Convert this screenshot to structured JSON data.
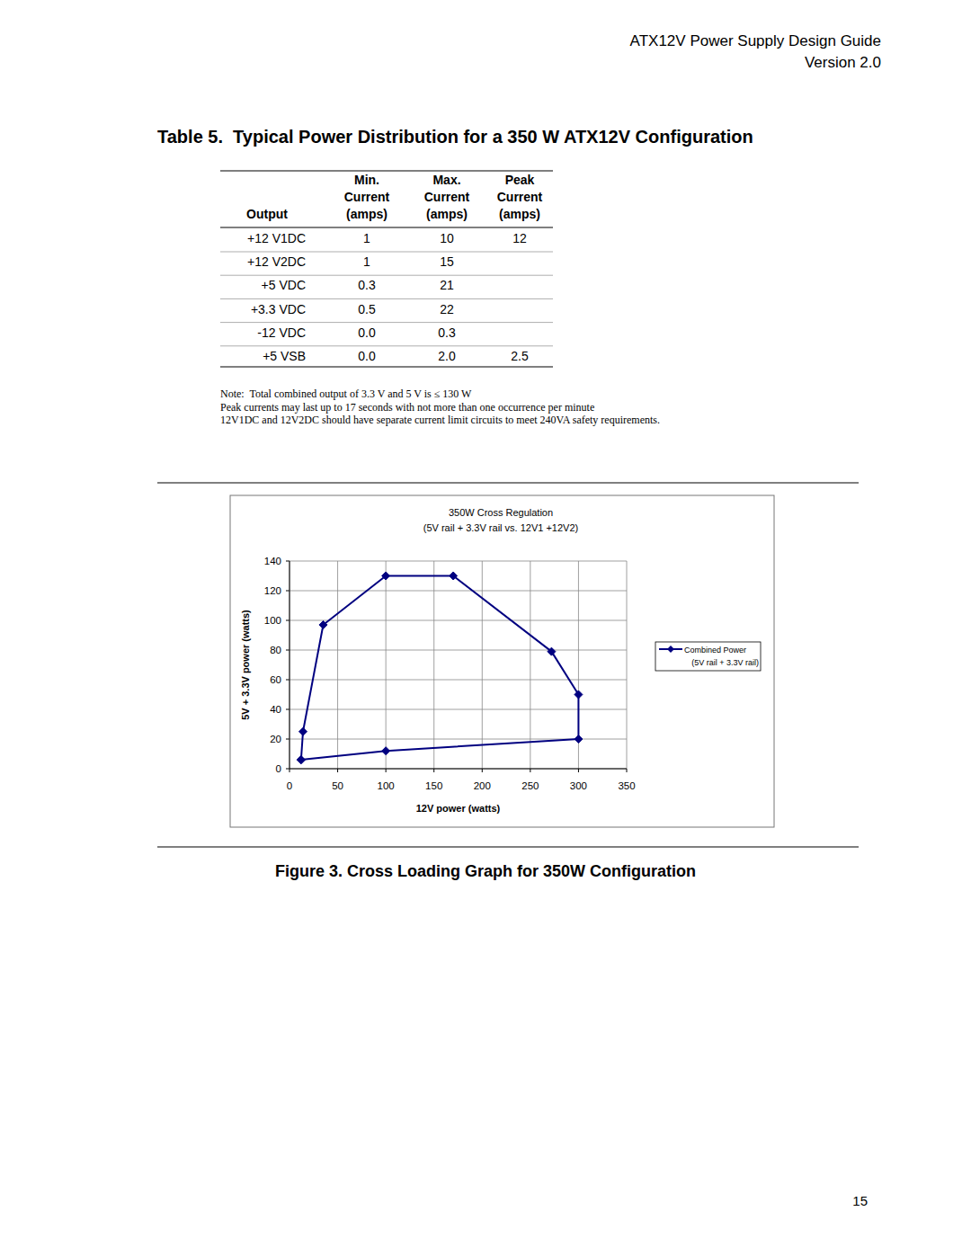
{
  "header": {
    "title": "ATX12V Power Supply Design Guide",
    "version": "Version 2.0"
  },
  "table": {
    "title": "Table 5.  Typical Power Distribution for a 350 W ATX12V Configuration",
    "columns": [
      [
        "Output"
      ],
      [
        "Min.",
        "Current",
        "(amps)"
      ],
      [
        "Max.",
        "Current",
        "(amps)"
      ],
      [
        "Peak",
        "Current",
        "(amps)"
      ]
    ],
    "rows": [
      [
        "+12 V1DC",
        "1",
        "10",
        "12"
      ],
      [
        "+12 V2DC",
        "1",
        "15",
        null
      ],
      [
        "+5 VDC",
        "0.3",
        "21",
        null
      ],
      [
        "+3.3 VDC",
        "0.5",
        "22",
        null
      ],
      [
        "-12 VDC",
        "0.0",
        "0.3",
        null
      ],
      [
        "+5 VSB",
        "0.0",
        "2.0",
        "2.5"
      ]
    ]
  },
  "notes": [
    "Note:  Total combined output of 3.3 V and 5 V is ≤ 130 W",
    "Peak currents may last up to 17 seconds with not more than one occurrence per minute",
    "12V1DC and 12V2DC should have separate current limit circuits to meet 240VA safety requirements."
  ],
  "chart_data": {
    "type": "line",
    "title": "350W Cross Regulation",
    "subtitle": "(5V rail + 3.3V rail vs. 12V1 +12V2)",
    "xlabel": "12V power (watts)",
    "ylabel": "5V + 3.3V power (watts)",
    "x": [
      12,
      14,
      35,
      100,
      170,
      272,
      300,
      300,
      100,
      12
    ],
    "series": [
      {
        "name": "Combined Power (5V rail + 3.3V rail)",
        "color": "#000080",
        "marker": "diamond",
        "values": [
          6,
          25,
          97,
          130,
          130,
          79,
          50,
          20,
          12,
          6
        ]
      }
    ],
    "xlim": [
      0,
      350
    ],
    "xticks": [
      0,
      50,
      100,
      150,
      200,
      250,
      300,
      350
    ],
    "ylim": [
      0,
      140
    ],
    "yticks": [
      0,
      20,
      40,
      60,
      80,
      100,
      120,
      140
    ],
    "grid": true,
    "legend": "right"
  },
  "figure_caption": "Figure 3. Cross Loading Graph for 350W Configuration",
  "page_number": "15"
}
